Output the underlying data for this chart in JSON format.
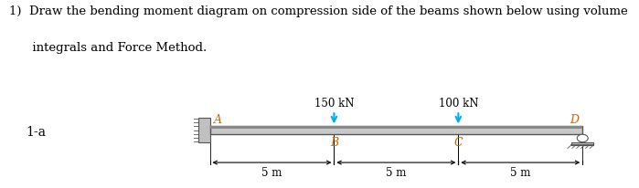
{
  "title_line1": "1)  Draw the bending moment diagram on compression side of the beams shown below using volume",
  "title_line2": "      integrals and Force Method.",
  "label_1a": "1-a",
  "points": {
    "A": 0.0,
    "B": 5.0,
    "C": 10.0,
    "D": 15.0
  },
  "loads": [
    {
      "x": 5.0,
      "label": "150 kN",
      "color": "#00aaff"
    },
    {
      "x": 10.0,
      "label": "100 kN",
      "color": "#00aaff"
    }
  ],
  "dim_labels": [
    "5 m",
    "5 m",
    "5 m"
  ],
  "beam_color_top": "#c8c8c8",
  "beam_color_bot": "#d8d8d8",
  "beam_border": "#555555",
  "wall_color": "#c0c0c0",
  "roller_color": "#ffffff",
  "text_color": "#000000",
  "label_color": "#cc6600",
  "background_color": "#ffffff",
  "title_fontsize": 9.5,
  "label_fontsize": 9,
  "dim_fontsize": 8.5
}
